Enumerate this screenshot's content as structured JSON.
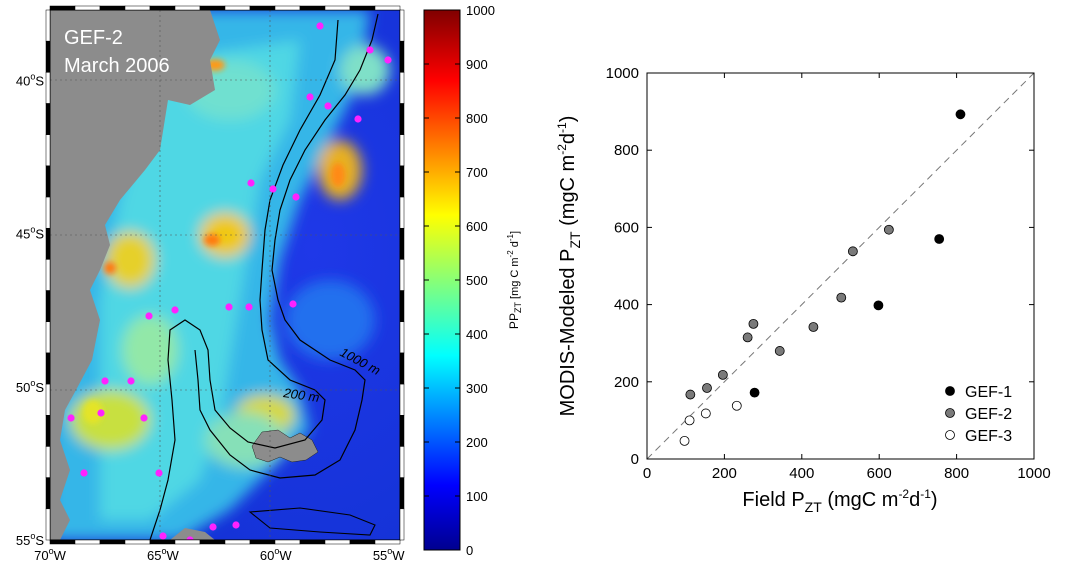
{
  "map": {
    "title_line1": "GEF-2",
    "title_line2": "March 2006",
    "lat_ticks": [
      {
        "lat": 40,
        "label": "40",
        "hemi": "S"
      },
      {
        "lat": 45,
        "label": "45",
        "hemi": "S"
      },
      {
        "lat": 50,
        "label": "50",
        "hemi": "S"
      },
      {
        "lat": 55,
        "label": "55",
        "hemi": "S"
      }
    ],
    "lon_ticks": [
      {
        "lon": 70,
        "label": "70",
        "hemi": "W"
      },
      {
        "lon": 65,
        "label": "65",
        "hemi": "W"
      },
      {
        "lon": 60,
        "label": "60",
        "hemi": "W"
      },
      {
        "lon": 55,
        "label": "55",
        "hemi": "W"
      }
    ],
    "isobath_labels": [
      "1000 m",
      "200 m"
    ],
    "station_color": "#ff22ff",
    "land_color": "#8c8c8c"
  },
  "colorbar": {
    "label_main": "PP",
    "label_sub": "ZT",
    "label_units": "[mg C m",
    "label_exp1": "-2",
    "label_mid": " d",
    "label_exp2": "-1",
    "label_end": "]",
    "range": [
      0,
      1000
    ],
    "ticks": [
      "1000",
      "900",
      "800",
      "700",
      "600",
      "500",
      "400",
      "300",
      "200",
      "100",
      "0"
    ]
  },
  "chart_data": {
    "type": "scatter",
    "xlabel": "Field P",
    "xlabel_sub": "ZT",
    "xlabel_units": " (mgC m",
    "ylabel": "MODIS-Modeled  P",
    "ylabel_sub": "ZT",
    "ylabel_units": " (mgC m",
    "unit_exp1": "-2",
    "unit_mid": "d",
    "unit_exp2": "-1",
    "unit_close": ")",
    "xlim": [
      0,
      1000
    ],
    "ylim": [
      0,
      1000
    ],
    "xticks": [
      "0",
      "200",
      "400",
      "600",
      "800",
      "1000"
    ],
    "yticks": [
      "0",
      "200",
      "400",
      "600",
      "800",
      "1000"
    ],
    "one_to_one_line": true,
    "legend_position": "bottom-right",
    "series": [
      {
        "name": "GEF-1",
        "fill": "#000000",
        "points": [
          [
            278,
            172
          ],
          [
            598,
            398
          ],
          [
            755,
            570
          ],
          [
            810,
            893
          ]
        ]
      },
      {
        "name": "GEF-2",
        "fill": "#7a7a7a",
        "points": [
          [
            112,
            167
          ],
          [
            155,
            184
          ],
          [
            196,
            218
          ],
          [
            260,
            315
          ],
          [
            275,
            350
          ],
          [
            343,
            280
          ],
          [
            430,
            342
          ],
          [
            502,
            418
          ],
          [
            532,
            538
          ],
          [
            625,
            594
          ]
        ]
      },
      {
        "name": "GEF-3",
        "fill": "#ffffff",
        "points": [
          [
            97,
            47
          ],
          [
            110,
            100
          ],
          [
            152,
            118
          ],
          [
            232,
            138
          ]
        ]
      }
    ]
  }
}
